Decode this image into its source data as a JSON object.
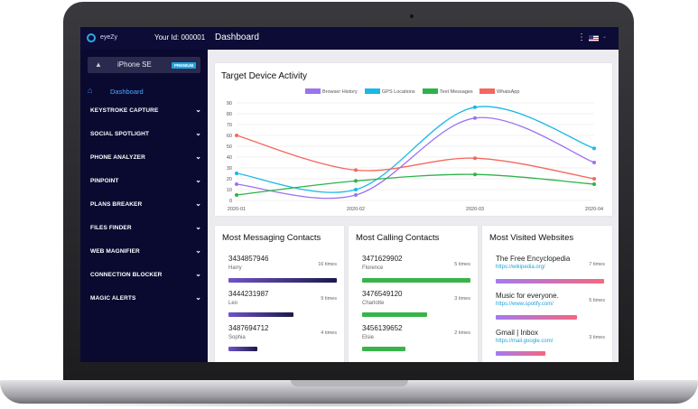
{
  "app": {
    "brand": "eyeZy",
    "user_id": "Your Id: 000001",
    "page_title": "Dashboard",
    "flag_icon": "us-flag-icon"
  },
  "device": {
    "name": "iPhone SE",
    "badge": "PREMIUM"
  },
  "sidebar": {
    "dashboard_label": "Dashboard",
    "items": [
      {
        "label": "KEYSTROKE CAPTURE"
      },
      {
        "label": "SOCIAL SPOTLIGHT"
      },
      {
        "label": "PHONE ANALYZER"
      },
      {
        "label": "PINPOINT"
      },
      {
        "label": "PLANS BREAKER"
      },
      {
        "label": "FILES FINDER"
      },
      {
        "label": "WEB MAGNIFIER"
      },
      {
        "label": "CONNECTION BLOCKER"
      },
      {
        "label": "MAGIC ALERTS"
      }
    ]
  },
  "chart_data": {
    "type": "line",
    "title": "Target Device Activity",
    "categories": [
      "2020-01",
      "2020-02",
      "2020-03",
      "2020-04"
    ],
    "ylim": [
      0,
      90
    ],
    "yticks": [
      "0",
      "10",
      "20",
      "30",
      "40",
      "50",
      "60",
      "70",
      "80",
      "90"
    ],
    "grid": true,
    "legend_position": "top",
    "series": [
      {
        "name": "Browser History",
        "color": "#9b72f2",
        "values": [
          15,
          5,
          76,
          35
        ]
      },
      {
        "name": "GPS Locations",
        "color": "#19b8e8",
        "values": [
          25,
          10,
          86,
          48
        ]
      },
      {
        "name": "Text Messages",
        "color": "#2db34a",
        "values": [
          5,
          18,
          24,
          15
        ]
      },
      {
        "name": "WhatsApp",
        "color": "#f4675f",
        "values": [
          60,
          28,
          39,
          20
        ]
      }
    ]
  },
  "messaging": {
    "title": "Most Messaging Contacts",
    "items": [
      {
        "number": "3434857946",
        "name": "Harry",
        "count": "16 times",
        "level": 1.0
      },
      {
        "number": "3444231987",
        "name": "Leo",
        "count": "9 times",
        "level": 0.6
      },
      {
        "number": "3487694712",
        "name": "Sophia",
        "count": "4 times",
        "level": 0.27
      }
    ]
  },
  "calling": {
    "title": "Most Calling Contacts",
    "items": [
      {
        "number": "3471629902",
        "name": "Florence",
        "count": "5 times",
        "level": 1.0
      },
      {
        "number": "3476549120",
        "name": "Charlotte",
        "count": "3 times",
        "level": 0.6
      },
      {
        "number": "3456139652",
        "name": "Elsie",
        "count": "2 times",
        "level": 0.4
      }
    ]
  },
  "websites": {
    "title": "Most Visited Websites",
    "items": [
      {
        "name": "The Free Encyclopedia",
        "url": "https://wikipedia.org/",
        "count": "7 times",
        "level": 1.0
      },
      {
        "name": "Music for everyone.",
        "url": "https://www.spotify.com/",
        "count": "5 times",
        "level": 0.75
      },
      {
        "name": "Gmail | Inbox",
        "url": "https://mail.google.com/",
        "count": "3 times",
        "level": 0.46
      }
    ]
  }
}
